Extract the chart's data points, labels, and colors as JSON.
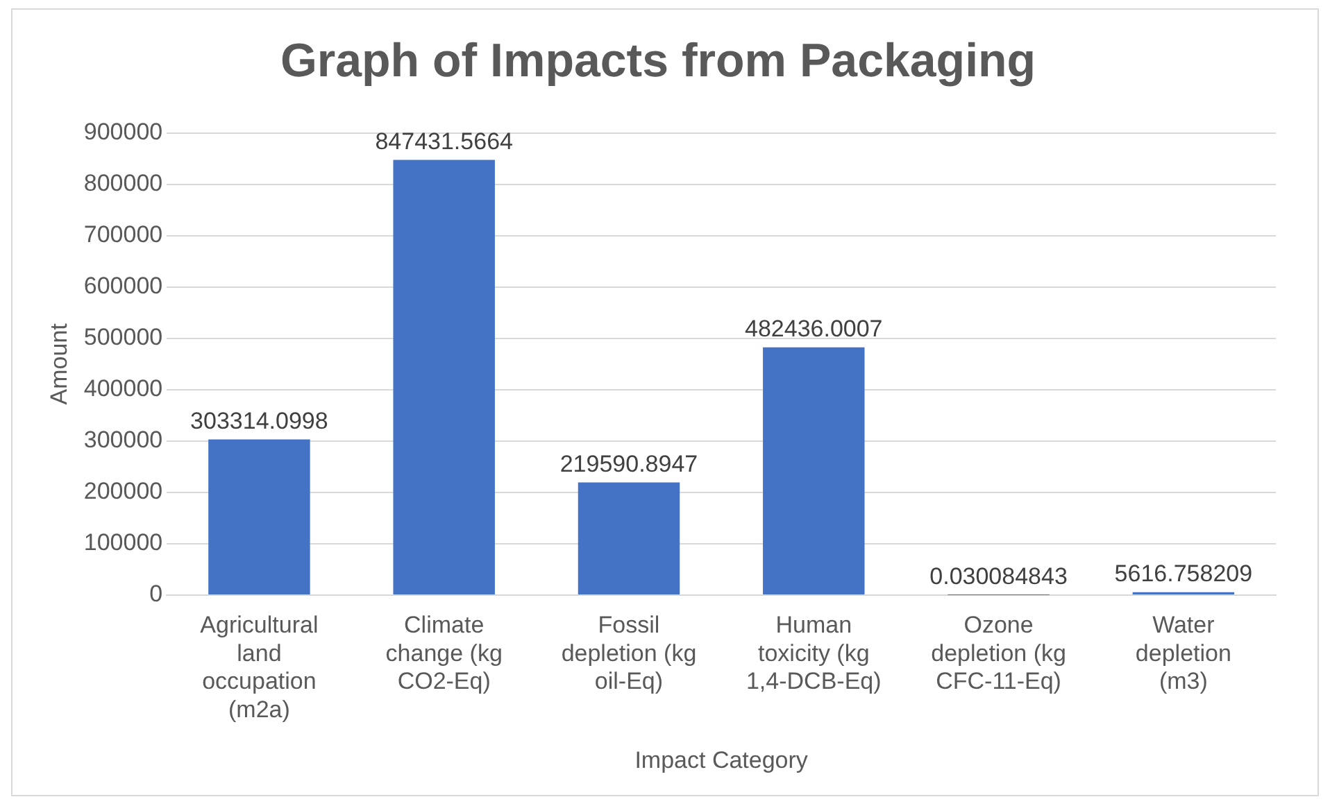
{
  "chart_data": {
    "type": "bar",
    "title": "Graph of Impacts from Packaging",
    "xlabel": "Impact Category",
    "ylabel": "Amount",
    "categories": [
      "Agricultural land occupation (m2a)",
      "Climate change (kg CO2-Eq)",
      "Fossil depletion (kg oil-Eq)",
      "Human toxicity (kg 1,4-DCB-Eq)",
      "Ozone depletion (kg CFC-11-Eq)",
      "Water depletion (m3)"
    ],
    "values": [
      303314.0998,
      847431.5664,
      219590.8947,
      482436.0007,
      0.030084843,
      5616.758209
    ],
    "color": "#4472c4",
    "ylim": [
      0,
      900000
    ],
    "yticks": [
      0,
      100000,
      200000,
      300000,
      400000,
      500000,
      600000,
      700000,
      800000,
      900000
    ],
    "grid": "y",
    "legend": false,
    "data_labels": true
  }
}
